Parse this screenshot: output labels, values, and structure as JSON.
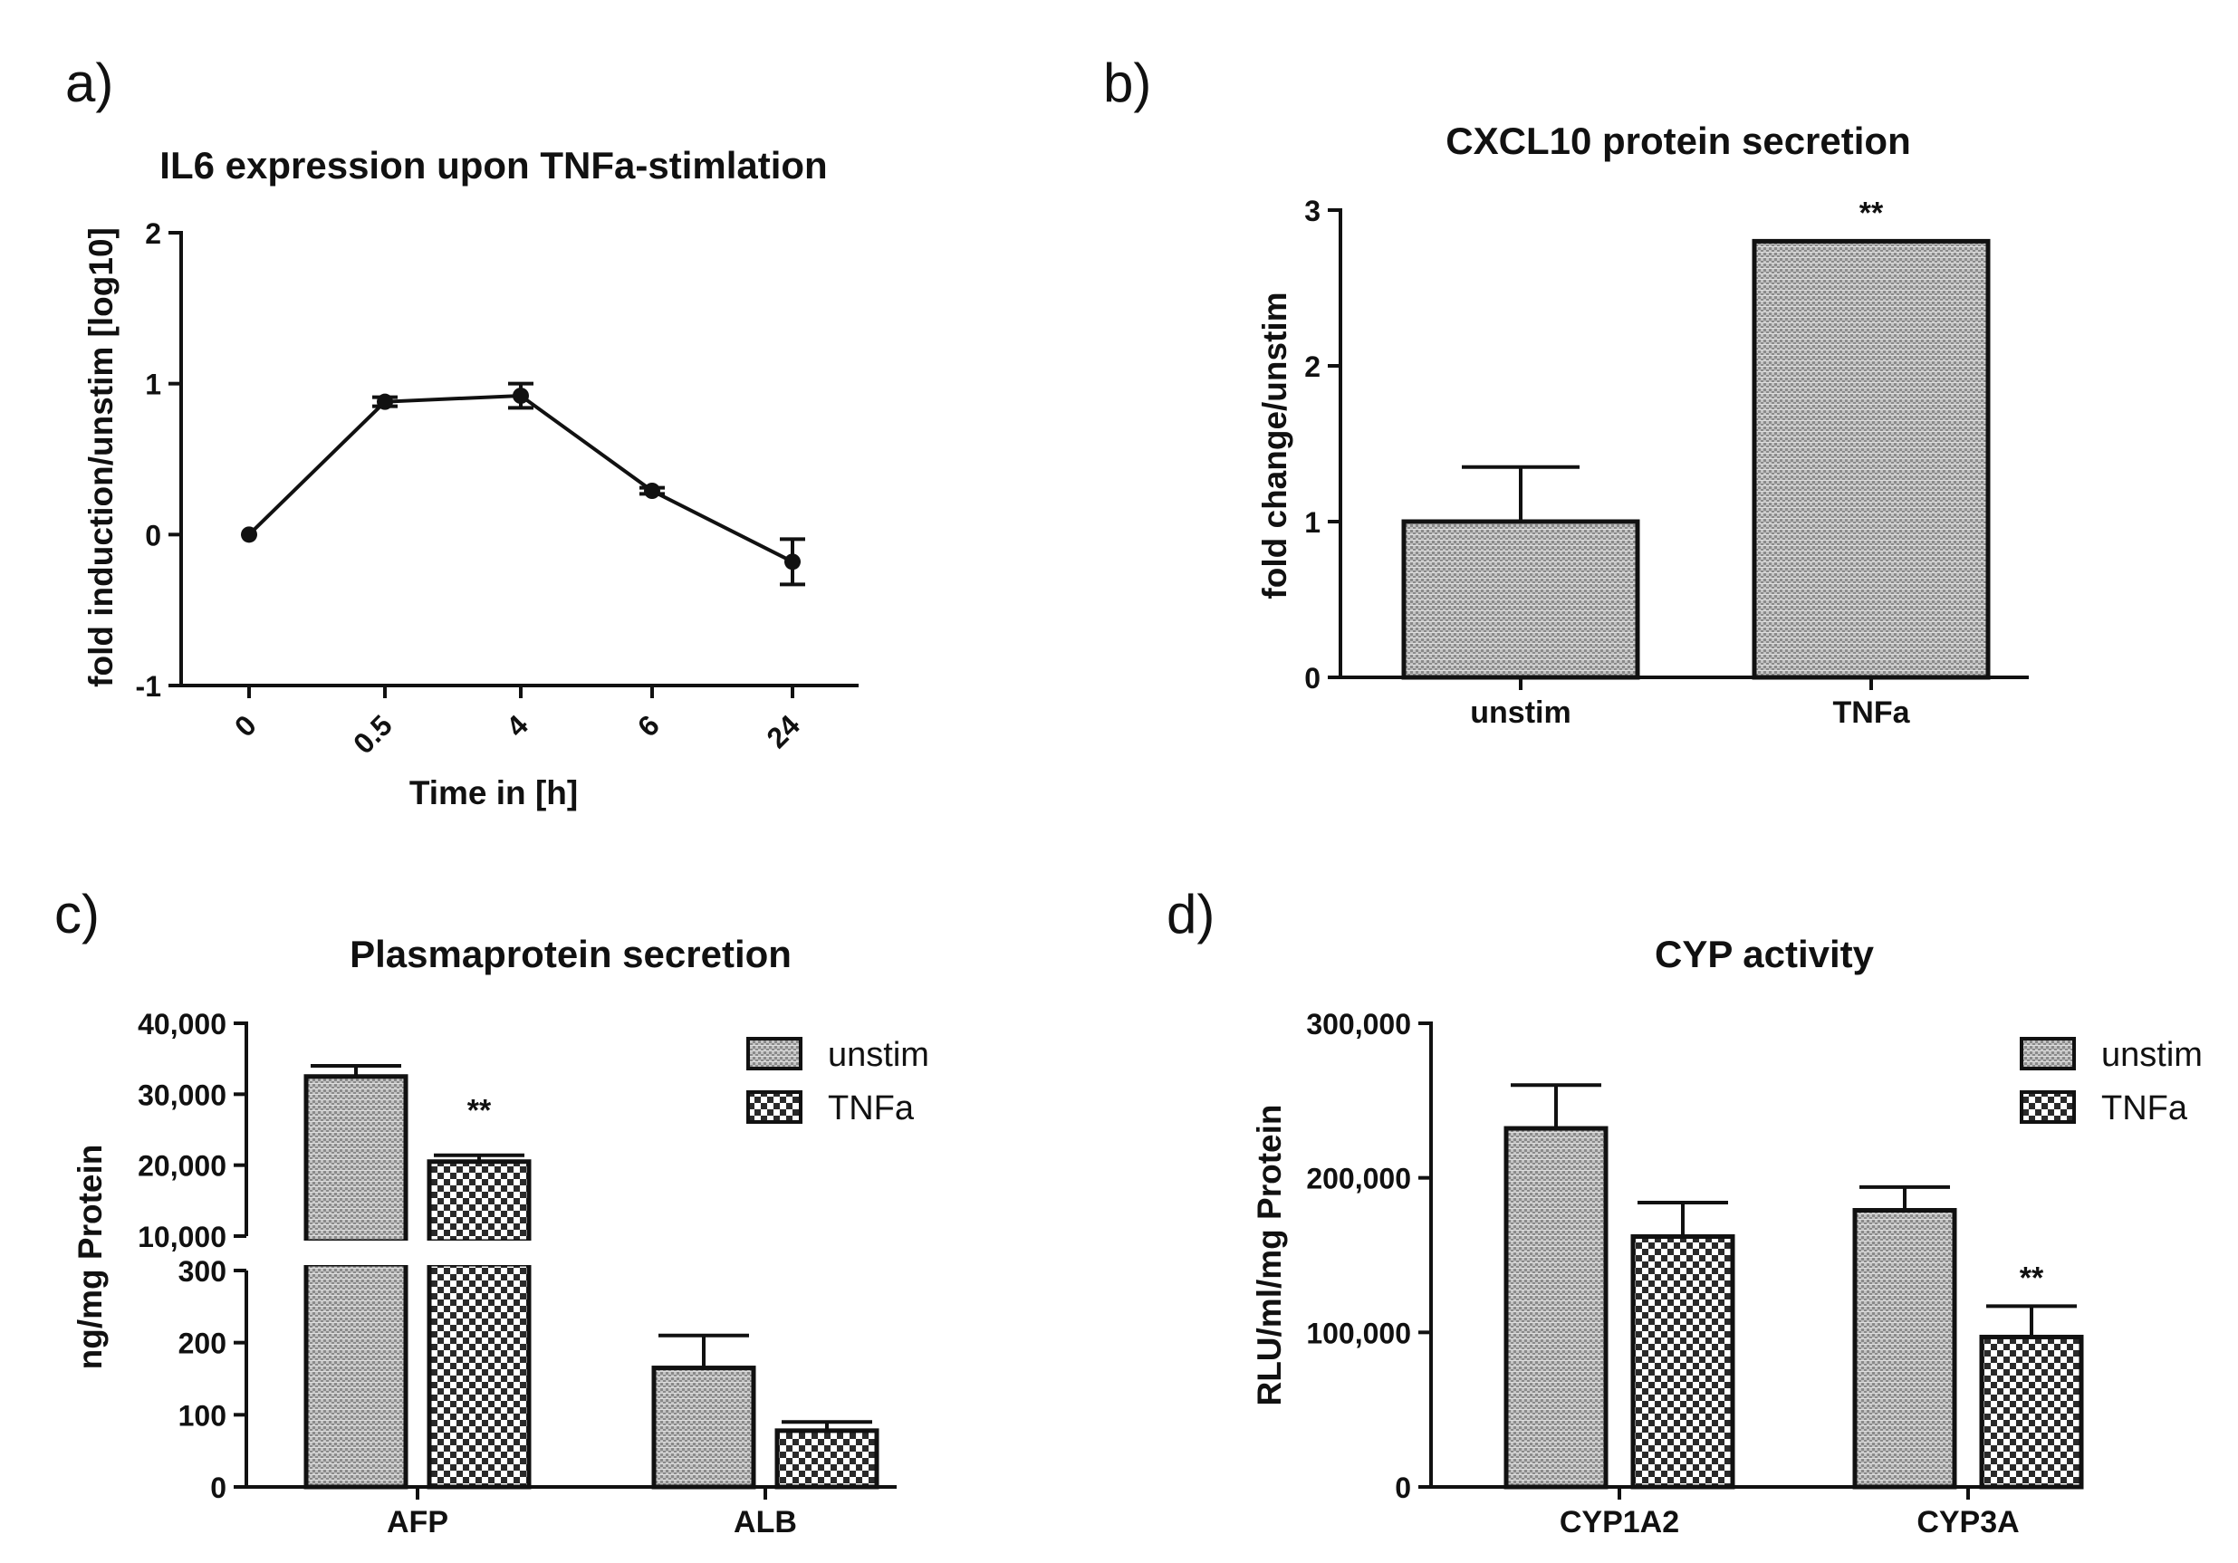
{
  "colors": {
    "ink": "#111111",
    "fill_unstim": "#bcbcbc",
    "fill_tnfa": "#ffffff"
  },
  "chart_data": [
    {
      "panel": "a)",
      "type": "line",
      "title": "IL6 expression upon TNFa-stimlation",
      "xlabel": "Time in [h]",
      "ylabel": "fold induction/unstim [log10]",
      "categories": [
        "0",
        "0.5",
        "4",
        "6",
        "24"
      ],
      "values": [
        0.0,
        0.88,
        0.92,
        0.29,
        -0.18
      ],
      "errors": [
        0.0,
        0.03,
        0.08,
        0.02,
        0.15
      ],
      "ylim": [
        -1,
        2
      ],
      "yticks": [
        -1,
        0,
        1,
        2
      ],
      "ytick_labels": [
        "-1",
        "0",
        "1",
        "2"
      ]
    },
    {
      "panel": "b)",
      "type": "bar",
      "title": "CXCL10 protein secretion",
      "xlabel": "",
      "ylabel": "fold change/unstim",
      "categories": [
        "unstim",
        "TNFa"
      ],
      "values": [
        1.0,
        2.8
      ],
      "errors": [
        0.35,
        0.0
      ],
      "significance": [
        "",
        "**"
      ],
      "ylim": [
        0,
        3
      ],
      "yticks": [
        0,
        1,
        2,
        3
      ],
      "ytick_labels": [
        "0",
        "1",
        "2",
        "3"
      ]
    },
    {
      "panel": "c)",
      "type": "bar",
      "title": "Plasmaprotein secretion",
      "xlabel": "",
      "ylabel": "ng/mg Protein",
      "categories": [
        "AFP",
        "ALB"
      ],
      "axis_break": {
        "lower_range": [
          0,
          300
        ],
        "upper_range": [
          10000,
          40000
        ]
      },
      "series": [
        {
          "name": "unstim",
          "values": [
            32500,
            165
          ],
          "errors": [
            1500,
            45
          ],
          "significance": [
            "",
            ""
          ]
        },
        {
          "name": "TNFa",
          "values": [
            20500,
            78
          ],
          "errors": [
            900,
            12
          ],
          "significance": [
            "**",
            ""
          ]
        }
      ],
      "yticks_lower": [
        0,
        100,
        200,
        300
      ],
      "ytick_labels_lower": [
        "0",
        "100",
        "200",
        "300"
      ],
      "yticks_upper": [
        10000,
        20000,
        30000,
        40000
      ],
      "ytick_labels_upper": [
        "10,000",
        "20,000",
        "30,000",
        "40,000"
      ],
      "legend": [
        "unstim",
        "TNFa"
      ],
      "legend_position": "top-right"
    },
    {
      "panel": "d)",
      "type": "bar",
      "title": "CYP activity",
      "xlabel": "",
      "ylabel": "RLU/ml/mg Protein",
      "categories": [
        "CYP1A2",
        "CYP3A"
      ],
      "series": [
        {
          "name": "unstim",
          "values": [
            232000,
            179000
          ],
          "errors": [
            28000,
            15000
          ],
          "significance": [
            "",
            ""
          ]
        },
        {
          "name": "TNFa",
          "values": [
            162000,
            97000
          ],
          "errors": [
            22000,
            20000
          ],
          "significance": [
            "",
            "**"
          ]
        }
      ],
      "ylim": [
        0,
        300000
      ],
      "yticks": [
        0,
        100000,
        200000,
        300000
      ],
      "ytick_labels": [
        "0",
        "100,000",
        "200,000",
        "300,000"
      ],
      "legend": [
        "unstim",
        "TNFa"
      ],
      "legend_position": "top-right"
    }
  ]
}
